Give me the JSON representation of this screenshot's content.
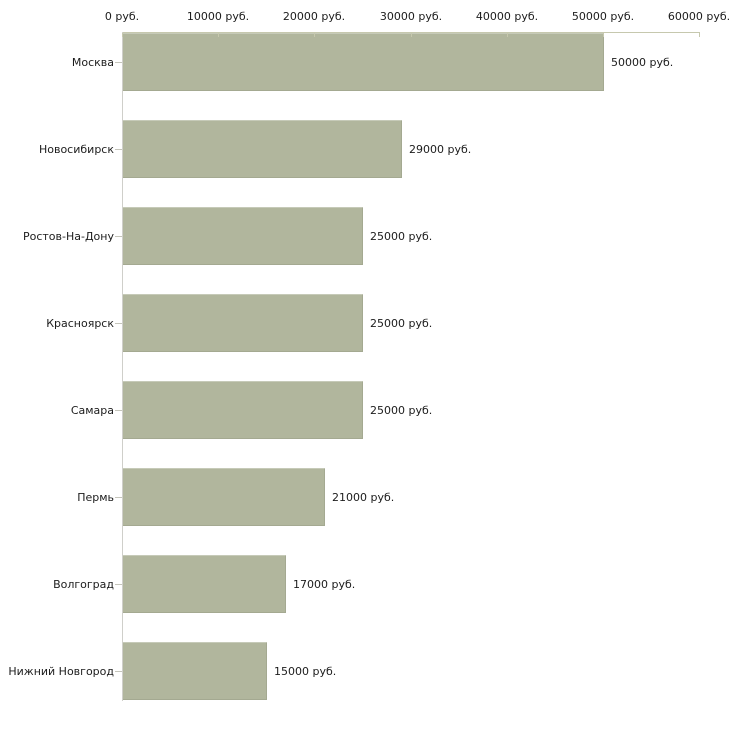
{
  "chart_data": {
    "type": "bar",
    "orientation": "horizontal",
    "title": "",
    "xlabel": "",
    "ylabel": "",
    "unit": "руб.",
    "categories": [
      "Москва",
      "Новосибирск",
      "Ростов-На-Дону",
      "Красноярск",
      "Самара",
      "Пермь",
      "Волгоград",
      "Нижний Новгород"
    ],
    "values": [
      50000,
      29000,
      25000,
      25000,
      25000,
      21000,
      17000,
      15000
    ],
    "value_labels": [
      "50000 руб.",
      "29000 руб.",
      "25000 руб.",
      "25000 руб.",
      "25000 руб.",
      "21000 руб.",
      "17000 руб.",
      "15000 руб."
    ],
    "x_ticks": [
      0,
      10000,
      20000,
      30000,
      40000,
      50000,
      60000
    ],
    "x_tick_labels": [
      "0 руб.",
      "10000 руб.",
      "20000 руб.",
      "30000 руб.",
      "40000 руб.",
      "50000 руб.",
      "60000 руб."
    ],
    "xlim": [
      0,
      60000
    ],
    "x_axis_position": "top",
    "grid": false,
    "legend": false,
    "colors": {
      "bar_fill": "#b1b69d",
      "x_axis_line": "#c6c8ae",
      "y_axis_line": "#cfcfca",
      "category_tick": "#c5c5bb",
      "text": "#1c1c1c",
      "background": "#ffffff"
    }
  }
}
